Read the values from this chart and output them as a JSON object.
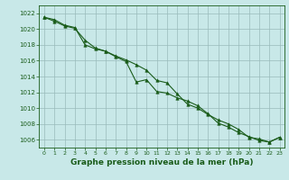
{
  "bg_color": "#c8e8e8",
  "plot_bg_color": "#c8e8e8",
  "grid_color": "#99bbbb",
  "line_color": "#1a5c1a",
  "marker_color": "#1a5c1a",
  "xlabel": "Graphe pression niveau de la mer (hPa)",
  "xlabel_fontsize": 6.5,
  "ylim": [
    1005.0,
    1023.0
  ],
  "xlim": [
    -0.5,
    23.5
  ],
  "yticks": [
    1006,
    1008,
    1010,
    1012,
    1014,
    1016,
    1018,
    1020,
    1022
  ],
  "xticks": [
    0,
    1,
    2,
    3,
    4,
    5,
    6,
    7,
    8,
    9,
    10,
    11,
    12,
    13,
    14,
    15,
    16,
    17,
    18,
    19,
    20,
    21,
    22,
    23
  ],
  "series1_x": [
    0,
    1,
    2,
    3,
    4,
    5,
    6,
    7,
    8,
    9,
    10,
    11,
    12,
    13,
    14,
    15,
    16,
    17,
    18,
    19,
    20,
    21,
    22,
    23
  ],
  "series1_y": [
    1021.5,
    1021.2,
    1020.5,
    1020.2,
    1018.0,
    1017.5,
    1017.2,
    1016.6,
    1016.1,
    1015.5,
    1014.8,
    1013.5,
    1013.2,
    1011.8,
    1010.5,
    1010.0,
    1009.2,
    1008.5,
    1008.0,
    1007.3,
    1006.3,
    1006.1,
    1005.7,
    1006.3
  ],
  "series2_x": [
    0,
    1,
    2,
    3,
    4,
    5,
    6,
    7,
    8,
    9,
    10,
    11,
    12,
    13,
    14,
    15,
    16,
    17,
    18,
    19,
    20,
    21,
    22,
    23
  ],
  "series2_y": [
    1021.5,
    1021.0,
    1020.4,
    1020.1,
    1018.6,
    1017.6,
    1017.2,
    1016.5,
    1015.9,
    1013.3,
    1013.6,
    1012.1,
    1011.9,
    1011.3,
    1010.9,
    1010.3,
    1009.3,
    1008.1,
    1007.6,
    1006.9,
    1006.4,
    1005.9,
    1005.7,
    1006.3
  ]
}
